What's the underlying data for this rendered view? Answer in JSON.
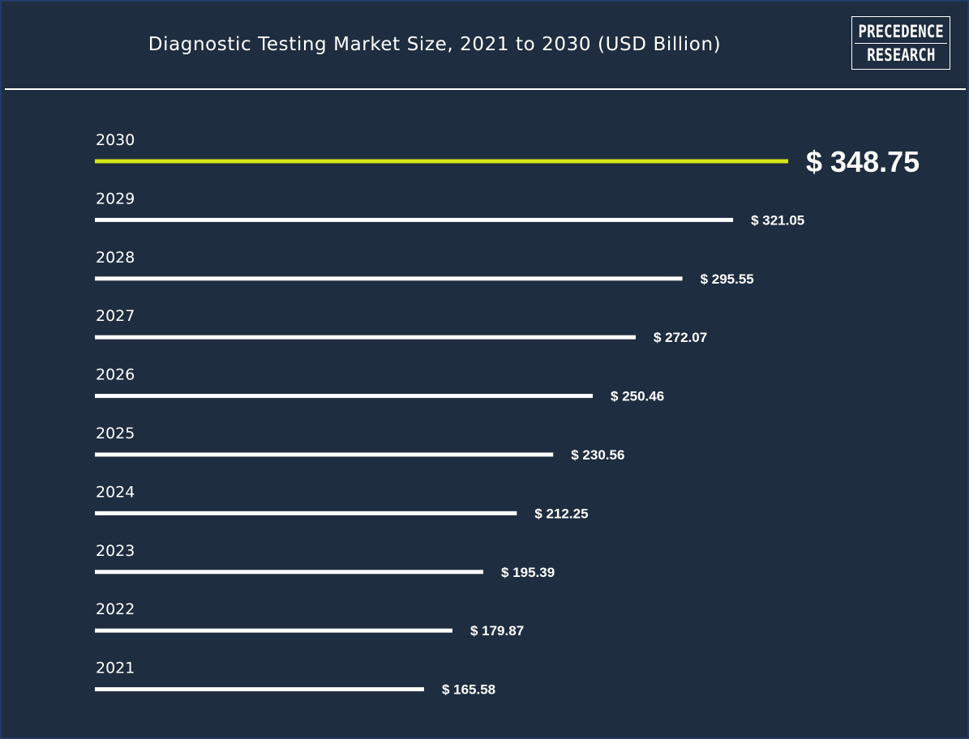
{
  "header": {
    "title": "Diagnostic Testing Market Size, 2021 to 2030 (USD Billion)"
  },
  "logo": {
    "line1": "PRECEDENCE",
    "line2": "RESEARCH"
  },
  "colors": {
    "background": "#1e2d3f",
    "bar": "#ffffff",
    "highlight_bar": "#d4e814",
    "text": "#ffffff"
  },
  "chart_data": {
    "type": "bar",
    "orientation": "horizontal",
    "title": "Diagnostic Testing Market Size, 2021 to 2030 (USD Billion)",
    "xlabel": "",
    "ylabel": "",
    "grid": false,
    "legend": "none",
    "xlim": [
      0,
      348.75
    ],
    "categories": [
      "2030",
      "2029",
      "2028",
      "2027",
      "2026",
      "2025",
      "2024",
      "2023",
      "2022",
      "2021"
    ],
    "values": [
      348.75,
      321.05,
      295.55,
      272.07,
      250.46,
      230.56,
      212.25,
      195.39,
      179.87,
      165.58
    ],
    "value_labels": [
      "$ 348.75",
      "$ 321.05",
      "$ 295.55",
      "$ 272.07",
      "$ 250.46",
      "$ 230.56",
      "$ 212.25",
      "$ 195.39",
      "$ 179.87",
      "$ 165.58"
    ],
    "highlight_category": "2030"
  }
}
